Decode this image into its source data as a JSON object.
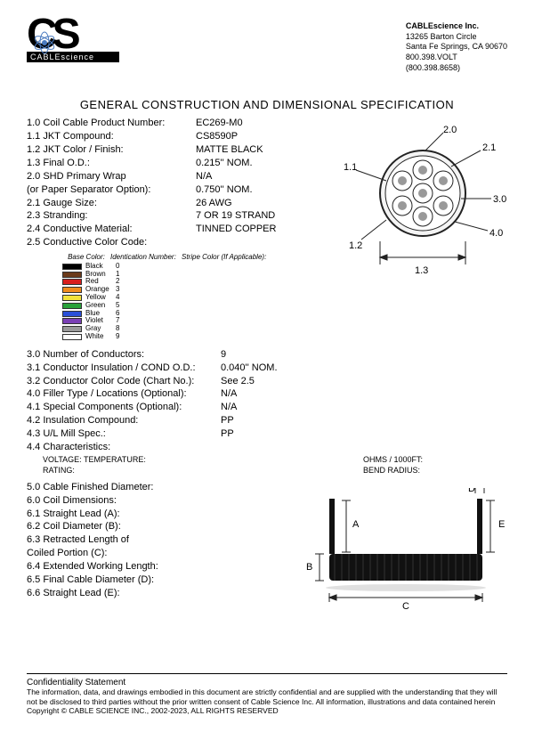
{
  "company": {
    "name": "CABLEscience Inc.",
    "addr1": "13265 Barton Circle",
    "addr2": "Santa Fe Springs, CA 90670",
    "phone1": "800.398.VOLT",
    "phone2": "(800.398.8658)",
    "logo_bar": "CABLEscience"
  },
  "title": "GENERAL CONSTRUCTION AND DIMENSIONAL SPECIFICATION",
  "specs1": [
    {
      "label": "1.0 Coil Cable Product Number:",
      "value": "EC269-M0"
    },
    {
      "label": "1.1 JKT Compound:",
      "value": "CS8590P"
    },
    {
      "label": "1.2 JKT Color / Finish:",
      "value": "MATTE BLACK"
    },
    {
      "label": "1.3 Final O.D.:",
      "value": "0.215'' NOM."
    },
    {
      "label": "2.0 SHD Primary Wrap",
      "value": "N/A"
    },
    {
      "label": "(or Paper Separator Option):",
      "value": "0.750'' NOM."
    },
    {
      "label": "2.1 Gauge Size:",
      "value": "26 AWG"
    },
    {
      "label": "2.3 Stranding:",
      "value": "7 OR 19 STRAND"
    },
    {
      "label": "2.4 Conductive Material:",
      "value": "TINNED COPPER"
    },
    {
      "label": "2.5 Conductive Color Code:",
      "value": ""
    }
  ],
  "color_table": {
    "headers": [
      "Base Color:",
      "Identication Number:",
      "Stripe Color (If Applicable):"
    ],
    "rows": [
      {
        "color": "#000000",
        "name": "Black",
        "num": "0"
      },
      {
        "color": "#6b3a1a",
        "name": "Brown",
        "num": "1"
      },
      {
        "color": "#d81e1e",
        "name": "Red",
        "num": "2"
      },
      {
        "color": "#ef8b1f",
        "name": "Orange",
        "num": "3"
      },
      {
        "color": "#f2e23b",
        "name": "Yellow",
        "num": "4"
      },
      {
        "color": "#2aa23a",
        "name": "Green",
        "num": "5"
      },
      {
        "color": "#2a4fd8",
        "name": "Blue",
        "num": "6"
      },
      {
        "color": "#7a3fb5",
        "name": "Violet",
        "num": "7"
      },
      {
        "color": "#9a9a9a",
        "name": "Gray",
        "num": "8"
      },
      {
        "color": "#ffffff",
        "name": "White",
        "num": "9"
      }
    ]
  },
  "specs3": [
    {
      "label": "3.0 Number of Conductors:",
      "value": "9"
    },
    {
      "label": "3.1 Conductor Insulation / COND O.D.:",
      "value": "0.040'' NOM."
    },
    {
      "label": "3.2 Conductor Color Code (Chart No.):",
      "value": "See 2.5"
    },
    {
      "label": "4.0 Filler Type / Locations (Optional):",
      "value": "N/A"
    },
    {
      "label": "4.1 Special Components (Optional):",
      "value": "N/A"
    },
    {
      "label": "4.2 Insulation Compound:",
      "value": "PP"
    },
    {
      "label": "4.3 U/L Mill Spec.:",
      "value": "PP"
    }
  ],
  "char": {
    "title": "4.4 Characteristics:",
    "left1": "VOLTAGE: TEMPERATURE:",
    "left2": "RATING:",
    "right1": "OHMS / 1000FT:",
    "right2": "BEND RADIUS:"
  },
  "specs5": [
    {
      "label": "5.0 Cable Finished Diameter:",
      "value": ""
    },
    {
      "label": "6.0 Coil Dimensions:",
      "value": ""
    },
    {
      "label": "6.1 Straight Lead (A):",
      "value": ""
    },
    {
      "label": "6.2 Coil Diameter (B):",
      "value": ""
    },
    {
      "label": "6.3 Retracted Length of",
      "value": ""
    },
    {
      "label": "Coiled Portion (C):",
      "value": ""
    },
    {
      "label": "6.4 Extended Working Length:",
      "value": ""
    },
    {
      "label": "6.5 Final Cable Diameter (D):",
      "value": ""
    },
    {
      "label": "6.6 Straight Lead (E):",
      "value": ""
    }
  ],
  "diagram_labels": {
    "l11": "1.1",
    "l12": "1.2",
    "l13": "1.3",
    "l20": "2.0",
    "l21": "2.1",
    "l30": "3.0",
    "l40": "4.0",
    "A": "A",
    "B": "B",
    "C": "C",
    "D": "D",
    "E": "E"
  },
  "footer": {
    "title": "Confidentiality Statement",
    "body": "The information, data, and drawings embodied in this document are strictly confidential and are supplied with the understanding that they will not be disclosed to third parties without the prior written consent of Cable Science Inc. All information, illustrations and data contained herein Copyright © CABLE SCIENCE INC., 2002-2023, ALL RIGHTS RESERVED"
  },
  "colors": {
    "line": "#222222",
    "fill_dark": "#111111"
  }
}
